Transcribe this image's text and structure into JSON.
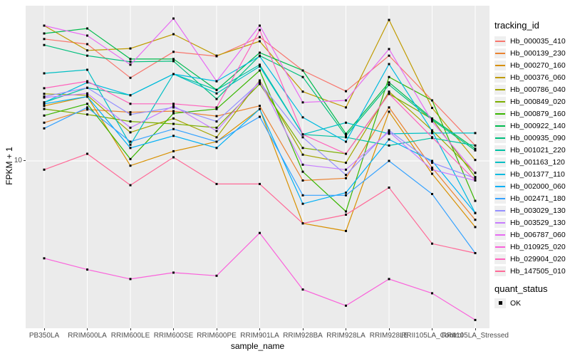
{
  "chart_data": {
    "type": "line",
    "title": "",
    "xlabel": "sample_name",
    "ylabel": "FPKM + 1",
    "y_scale": "log10",
    "y_ticks": [
      10
    ],
    "y_tick_labels": [
      "10"
    ],
    "ylim": [
      1.7,
      52
    ],
    "grid": "on",
    "legend_position": "right",
    "legend_title": "tracking_id",
    "panel_bg": "#EBEBEB",
    "grid_color": "#FFFFFF",
    "point_shape": "square",
    "point_color": "#000000",
    "categories": [
      "PB350LA",
      "RRIM600LA",
      "RRIM600LE",
      "RRIM600SE",
      "RRIM600PE",
      "RRIM901LA",
      "RRIM928BA",
      "RRIM928LA",
      "RRIM928LE",
      "RRII105LA_Control",
      "RRII105LA_Stressed"
    ],
    "series": [
      {
        "name": "Hb_000035_410",
        "color": "#F8766D",
        "values": [
          37.2,
          35.2,
          24.5,
          32.4,
          30.9,
          38.0,
          26.5,
          21.2,
          31.1,
          19.2,
          11.8
        ]
      },
      {
        "name": "Hb_000139_230",
        "color": "#EA8331",
        "values": [
          15.1,
          17.4,
          16.9,
          17.1,
          16.2,
          18.1,
          8.1,
          8.3,
          17.8,
          9.3,
          5.3
        ]
      },
      {
        "name": "Hb_000270_160",
        "color": "#D89000",
        "values": [
          18.1,
          20.0,
          9.5,
          11.1,
          12.3,
          17.5,
          5.1,
          4.7,
          17.0,
          8.7,
          4.9
        ]
      },
      {
        "name": "Hb_000376_060",
        "color": "#C09B00",
        "values": [
          43.0,
          32.9,
          33.6,
          39.2,
          31.1,
          36.3,
          21.1,
          17.8,
          45.7,
          17.7,
          10.1
        ]
      },
      {
        "name": "Hb_000786_040",
        "color": "#A3A500",
        "values": [
          20.6,
          20.3,
          13.6,
          15.8,
          12.9,
          23.8,
          10.7,
          9.8,
          21.1,
          13.9,
          8.8
        ]
      },
      {
        "name": "Hb_000849_020",
        "color": "#7CAE00",
        "values": [
          17.5,
          16.5,
          15.3,
          14.9,
          14.3,
          22.9,
          11.5,
          10.8,
          20.6,
          15.7,
          8.4
        ]
      },
      {
        "name": "Hb_000879_160",
        "color": "#39B600",
        "values": [
          16.3,
          18.5,
          10.2,
          16.7,
          17.5,
          26.5,
          8.9,
          5.8,
          24.7,
          19.2,
          6.5
        ]
      },
      {
        "name": "Hb_000922_140",
        "color": "#00BB4E",
        "values": [
          39.5,
          41.7,
          30.0,
          30.0,
          21.5,
          32.1,
          26.5,
          13.4,
          23.3,
          15.8,
          11.4
        ]
      },
      {
        "name": "Hb_000935_090",
        "color": "#00BF7D",
        "values": [
          34.9,
          31.1,
          29.1,
          29.3,
          19.5,
          31.1,
          24.7,
          13.1,
          22.7,
          15.6,
          11.2
        ]
      },
      {
        "name": "Hb_001021_220",
        "color": "#00C1A3",
        "values": [
          18.8,
          22.0,
          20.3,
          25.5,
          21.5,
          28.2,
          13.3,
          12.9,
          11.8,
          12.8,
          11.8
        ]
      },
      {
        "name": "Hb_001163_120",
        "color": "#00BFC4",
        "values": [
          25.7,
          26.7,
          11.9,
          25.5,
          20.7,
          27.7,
          13.3,
          15.1,
          13.4,
          13.5,
          13.5
        ]
      },
      {
        "name": "Hb_001377_110",
        "color": "#00BAE0",
        "values": [
          18.8,
          23.3,
          20.3,
          25.5,
          23.6,
          30.9,
          16.0,
          12.3,
          28.4,
          13.8,
          5.7
        ]
      },
      {
        "name": "Hb_002000_060",
        "color": "#00B0F6",
        "values": [
          18.5,
          20.0,
          11.5,
          13.1,
          11.5,
          17.5,
          6.3,
          7.1,
          12.6,
          10.0,
          5.7
        ]
      },
      {
        "name": "Hb_002471_180",
        "color": "#35A2FF",
        "values": [
          14.2,
          17.8,
          12.3,
          14.1,
          12.3,
          16.1,
          6.9,
          6.9,
          10.0,
          7.0,
          3.7
        ]
      },
      {
        "name": "Hb_003029_130",
        "color": "#9590FF",
        "values": [
          20.0,
          22.0,
          16.5,
          17.8,
          15.3,
          23.3,
          12.9,
          8.6,
          13.9,
          9.8,
          8.3
        ]
      },
      {
        "name": "Hb_003529_130",
        "color": "#C77CFF",
        "values": [
          19.8,
          20.7,
          14.3,
          18.1,
          13.8,
          23.6,
          9.6,
          9.1,
          13.7,
          9.1,
          8.1
        ]
      },
      {
        "name": "Hb_006787_060",
        "color": "#E76BF3",
        "values": [
          43.0,
          38.6,
          28.2,
          46.4,
          23.6,
          43.0,
          18.8,
          19.2,
          33.4,
          15.3,
          8.8
        ]
      },
      {
        "name": "Hb_010925_020",
        "color": "#FA62DB",
        "values": [
          3.5,
          3.1,
          2.8,
          3.0,
          2.9,
          4.6,
          2.5,
          2.1,
          2.8,
          2.4,
          1.8
        ]
      },
      {
        "name": "Hb_029904_020",
        "color": "#FF62BC",
        "values": [
          21.9,
          23.6,
          18.5,
          18.5,
          17.8,
          41.0,
          13.3,
          10.8,
          20.6,
          12.9,
          8.1
        ]
      },
      {
        "name": "Hb_147505_010",
        "color": "#FF6A98",
        "values": [
          9.1,
          10.8,
          7.7,
          10.4,
          7.8,
          7.8,
          5.1,
          5.6,
          7.5,
          4.1,
          3.7
        ]
      }
    ],
    "quant_legend": {
      "title": "quant_status",
      "items": [
        "OK"
      ]
    }
  }
}
